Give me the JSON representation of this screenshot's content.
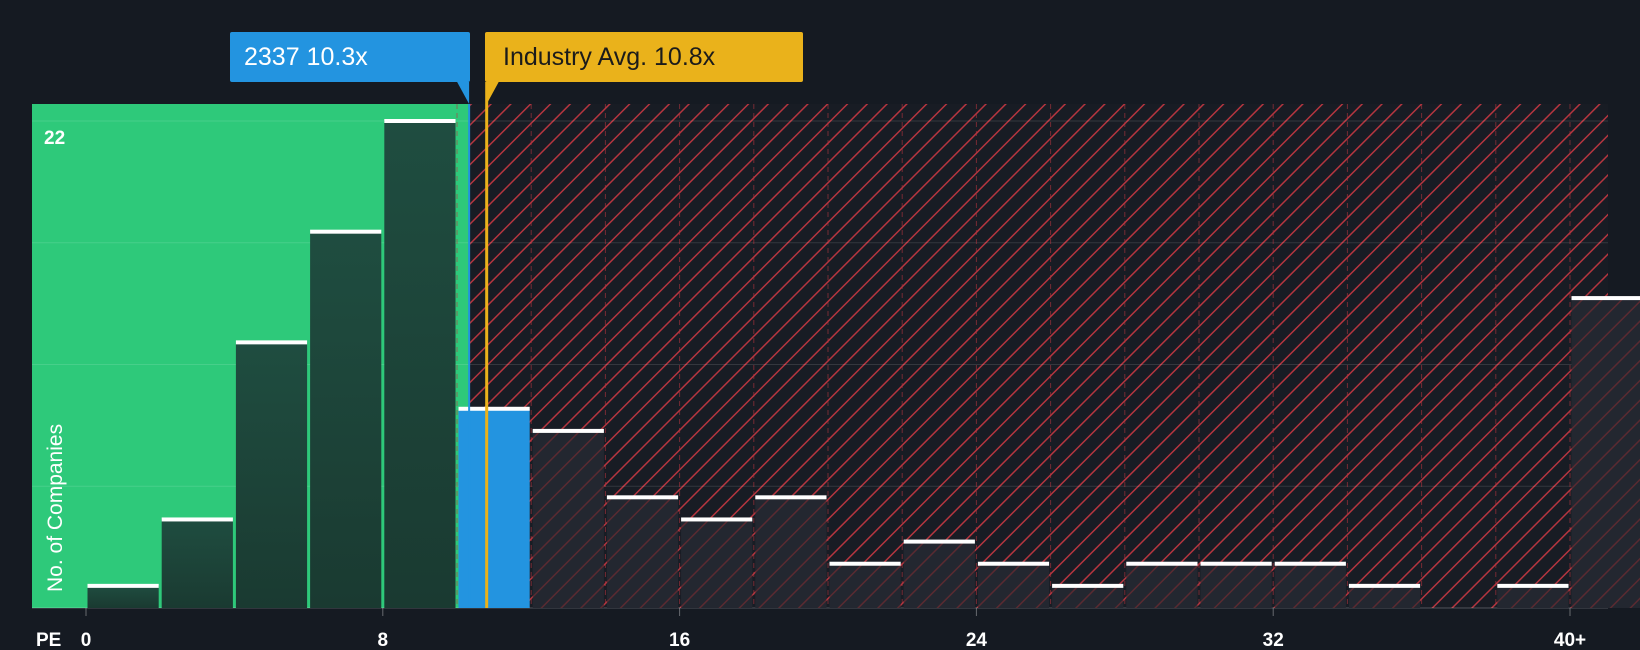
{
  "chart_data": {
    "type": "bar",
    "title": "",
    "xlabel": "PE",
    "ylabel": "No. of Companies",
    "x_tick_labels": [
      "0",
      "8",
      "16",
      "24",
      "32",
      "40+"
    ],
    "x_tick_values": [
      0,
      8,
      16,
      24,
      32,
      40
    ],
    "y_tick_label": "22",
    "ylim": [
      0,
      22
    ],
    "bin_width": 2,
    "bins": [
      {
        "x_start": 0,
        "count": 1,
        "zone": "below"
      },
      {
        "x_start": 2,
        "count": 4,
        "zone": "below"
      },
      {
        "x_start": 4,
        "count": 12,
        "zone": "below"
      },
      {
        "x_start": 6,
        "count": 17,
        "zone": "below"
      },
      {
        "x_start": 8,
        "count": 22,
        "zone": "below"
      },
      {
        "x_start": 10,
        "count": 9,
        "zone": "company"
      },
      {
        "x_start": 12,
        "count": 8,
        "zone": "above"
      },
      {
        "x_start": 14,
        "count": 5,
        "zone": "above"
      },
      {
        "x_start": 16,
        "count": 4,
        "zone": "above"
      },
      {
        "x_start": 18,
        "count": 5,
        "zone": "above"
      },
      {
        "x_start": 20,
        "count": 2,
        "zone": "above"
      },
      {
        "x_start": 22,
        "count": 3,
        "zone": "above"
      },
      {
        "x_start": 24,
        "count": 2,
        "zone": "above"
      },
      {
        "x_start": 26,
        "count": 1,
        "zone": "above"
      },
      {
        "x_start": 28,
        "count": 2,
        "zone": "above"
      },
      {
        "x_start": 30,
        "count": 2,
        "zone": "above"
      },
      {
        "x_start": 32,
        "count": 2,
        "zone": "above"
      },
      {
        "x_start": 34,
        "count": 1,
        "zone": "above"
      },
      {
        "x_start": 36,
        "count": 0,
        "zone": "above"
      },
      {
        "x_start": 38,
        "count": 1,
        "zone": "above"
      },
      {
        "x_start": 40,
        "count": 14,
        "zone": "above"
      }
    ],
    "company": {
      "ticker": "2337",
      "label": "2337 10.3x",
      "pe": 10.3
    },
    "industry": {
      "label": "Industry Avg. 10.8x",
      "pe": 10.8
    },
    "colors": {
      "background": "#151a22",
      "below_zone": "#2ec97a",
      "below_bar": "#1f4d3f",
      "company_bar": "#2394e0",
      "above_zone_stripe": "#b4353f",
      "above_bar": "#262a33",
      "industry_line": "#eab21b",
      "bar_cap": "#ffffff"
    }
  }
}
